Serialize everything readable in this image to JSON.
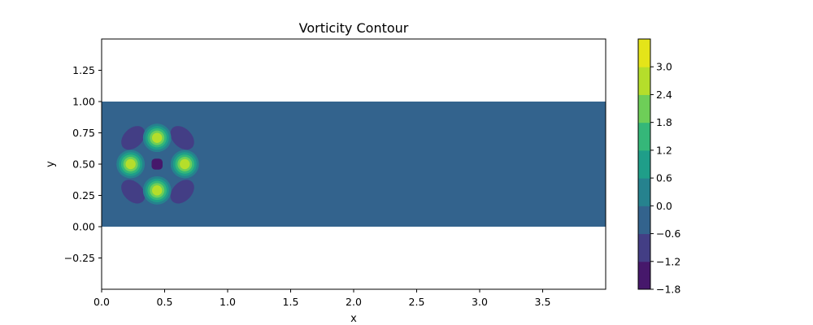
{
  "chart_data": {
    "type": "contourf",
    "title": "Vorticity Contour",
    "xlabel": "x",
    "ylabel": "y",
    "xlim": [
      0.0,
      4.0
    ],
    "ylim": [
      -0.5,
      1.5
    ],
    "x_ticks": [
      "0.0",
      "0.5",
      "1.0",
      "1.5",
      "2.0",
      "2.5",
      "3.0",
      "3.5"
    ],
    "y_ticks": [
      "−0.25",
      "0.00",
      "0.25",
      "0.50",
      "0.75",
      "1.00",
      "1.25"
    ],
    "field_domain": {
      "x": [
        0.0,
        4.0
      ],
      "y": [
        0.0,
        1.0
      ]
    },
    "background_level": [
      -0.6,
      0.0
    ],
    "colorbar": {
      "levels": [
        -1.8,
        -1.2,
        -0.6,
        0.0,
        0.6,
        1.2,
        1.8,
        2.4,
        3.0
      ],
      "tick_labels": [
        "−1.8",
        "−1.2",
        "−0.6",
        "0.0",
        "0.6",
        "1.2",
        "1.8",
        "2.4",
        "3.0"
      ],
      "colors": [
        "#46186b",
        "#433e85",
        "#33638d",
        "#26828e",
        "#1f9e89",
        "#35b779",
        "#6ece58",
        "#b5de2b",
        "#e4e419"
      ]
    },
    "features": [
      {
        "type": "peak",
        "x": 0.44,
        "y": 0.71,
        "max": 3.0
      },
      {
        "type": "peak",
        "x": 0.23,
        "y": 0.5,
        "max": 3.0
      },
      {
        "type": "peak",
        "x": 0.66,
        "y": 0.5,
        "max": 3.0
      },
      {
        "type": "peak",
        "x": 0.44,
        "y": 0.29,
        "max": 3.0
      },
      {
        "type": "trough",
        "x": 0.44,
        "y": 0.5,
        "min": -1.8
      },
      {
        "type": "lobe",
        "x": 0.25,
        "y": 0.71,
        "min": -1.2
      },
      {
        "type": "lobe",
        "x": 0.64,
        "y": 0.71,
        "min": -1.2
      },
      {
        "type": "lobe",
        "x": 0.25,
        "y": 0.28,
        "min": -1.2
      },
      {
        "type": "lobe",
        "x": 0.64,
        "y": 0.28,
        "min": -1.2
      }
    ]
  }
}
